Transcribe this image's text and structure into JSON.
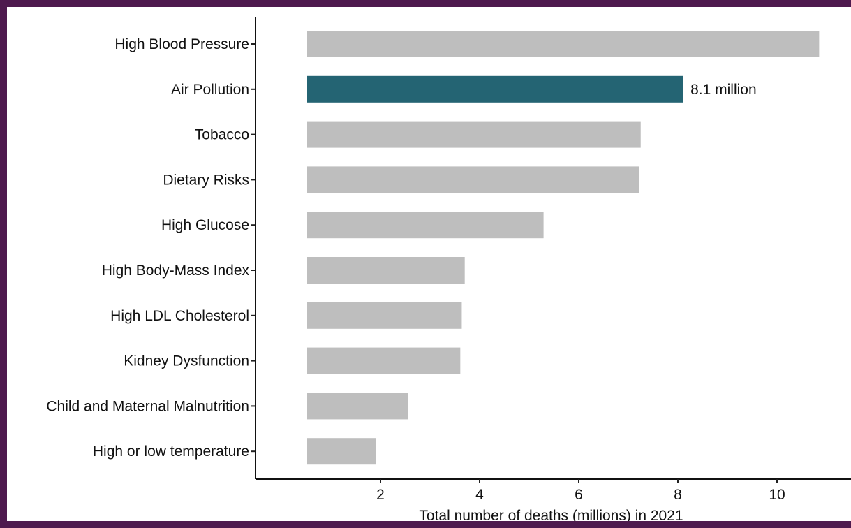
{
  "chart_data": {
    "type": "bar",
    "orientation": "horizontal",
    "categories": [
      "High Blood Pressure",
      "Air Pollution",
      "Tobacco",
      "Dietary Risks",
      "High Glucose",
      "High Body-Mass Index",
      "High LDL Cholesterol",
      "Kidney Dysfunction",
      "Child and Maternal Malnutrition",
      "High or low temperature"
    ],
    "values": [
      10.85,
      8.1,
      7.25,
      7.22,
      5.29,
      3.7,
      3.64,
      3.61,
      2.56,
      1.91
    ],
    "highlight_index": 1,
    "highlight_label": "8.1 million",
    "colors": {
      "default": "#bebebe",
      "highlight": "#246473",
      "frame": "#4e1a4e"
    },
    "title": "",
    "xlabel": "Total number of deaths (millions) in 2021",
    "ylabel": "",
    "xticks": [
      2,
      4,
      6,
      8,
      10
    ],
    "xlim": [
      0,
      11.3
    ],
    "grid": false
  }
}
